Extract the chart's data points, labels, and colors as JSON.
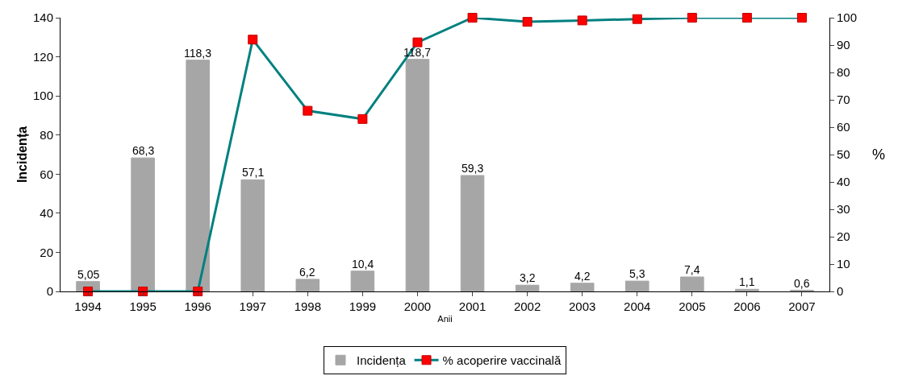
{
  "chart_data": {
    "type": "bar",
    "xlabel": "Anii",
    "ylabel": "Incidența",
    "y2label": "%",
    "categories": [
      "1994",
      "1995",
      "1996",
      "1997",
      "1998",
      "1999",
      "2000",
      "2001",
      "2002",
      "2003",
      "2004",
      "2005",
      "2006",
      "2007"
    ],
    "series": [
      {
        "name": "Incidența",
        "color": "#a6a6a6",
        "values": [
          5.05,
          68.3,
          118.3,
          57.1,
          6.2,
          10.4,
          118.7,
          59.3,
          3.2,
          4.2,
          5.3,
          7.4,
          1.1,
          0.6
        ],
        "value_labels": [
          "5,05",
          "68,3",
          "118,3",
          "57,1",
          "6,2",
          "10,4",
          "118,7",
          "59,3",
          "3,2",
          "4,2",
          "5,3",
          "7,4",
          "1,1",
          "0,6"
        ]
      },
      {
        "name": "% acoperire vaccinală",
        "type": "line",
        "axis": "y2",
        "color": "#008080",
        "marker": "square",
        "values": [
          0,
          0,
          0,
          92,
          66,
          63,
          91,
          100,
          98.5,
          99,
          99.5,
          100,
          100,
          100
        ]
      }
    ],
    "ylim": [
      0,
      140
    ],
    "yticks": [
      0,
      20,
      40,
      60,
      80,
      100,
      120,
      140
    ],
    "y2lim": [
      0,
      100
    ],
    "y2ticks": [
      0,
      10,
      20,
      30,
      40,
      50,
      60,
      70,
      80,
      90,
      100
    ],
    "grid": false,
    "legend": "bottom"
  }
}
